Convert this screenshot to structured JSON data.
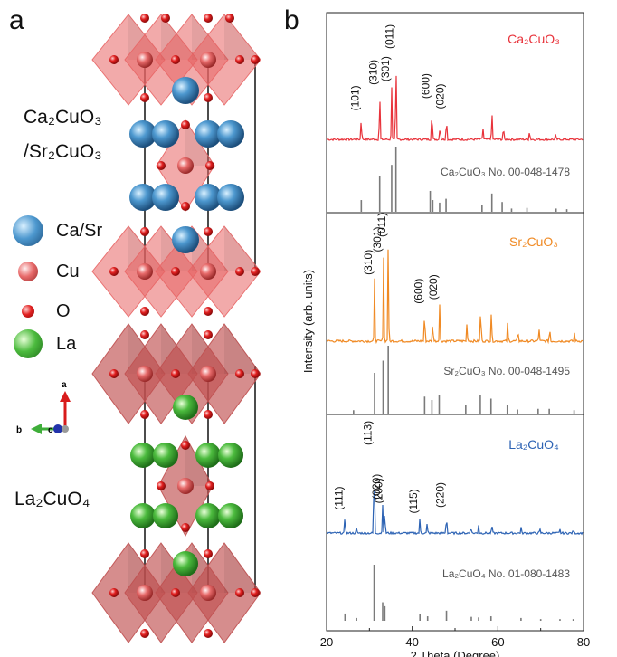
{
  "panels": {
    "a": "a",
    "b": "b"
  },
  "structure": {
    "top_formula_1": "Ca₂CuO₃",
    "top_formula_2": "/Sr₂CuO₃",
    "bottom_formula": "La₂CuO₄",
    "legend": [
      {
        "label": "Ca/Sr",
        "color": "#3b7fb4",
        "icon": "blue-sphere"
      },
      {
        "label": "Cu",
        "color": "#e05f5f",
        "icon": "pink-sphere"
      },
      {
        "label": "O",
        "color": "#d81b1b",
        "icon": "red-sphere"
      },
      {
        "label": "La",
        "color": "#3fae3a",
        "icon": "green-sphere"
      }
    ],
    "axes": {
      "a": "a",
      "b": "b",
      "c": "c"
    }
  },
  "chart_data": {
    "type": "line",
    "xlabel": "2 Theta (Degree)",
    "ylabel": "Intensity (arb. units)",
    "xlim": [
      20,
      80
    ],
    "xticks": [
      20,
      40,
      60,
      80
    ],
    "series": [
      {
        "name": "Ca₂CuO₃",
        "color": "#e8333b",
        "kind": "measured",
        "peaks": [
          {
            "x": 28.1,
            "h": 0.28,
            "label": "(101)"
          },
          {
            "x": 32.4,
            "h": 0.58,
            "label": "(310)"
          },
          {
            "x": 35.2,
            "h": 0.62,
            "label": "(301)"
          },
          {
            "x": 36.2,
            "h": 1.0,
            "label": "(011)"
          },
          {
            "x": 44.6,
            "h": 0.42,
            "label": "(600)"
          },
          {
            "x": 46.5,
            "h": 0.2,
            "label": ""
          },
          {
            "x": 48.0,
            "h": 0.3,
            "label": "(020)"
          },
          {
            "x": 56.5,
            "h": 0.15,
            "label": ""
          },
          {
            "x": 58.6,
            "h": 0.35,
            "label": ""
          },
          {
            "x": 61.3,
            "h": 0.17,
            "label": ""
          },
          {
            "x": 67.4,
            "h": 0.12,
            "label": ""
          },
          {
            "x": 73.5,
            "h": 0.06,
            "label": ""
          }
        ]
      },
      {
        "name": "Ca₂CuO₃ No. 00-048-1478",
        "color": "#7a7a7a",
        "kind": "reference",
        "peaks": [
          {
            "x": 28.1,
            "h": 0.18
          },
          {
            "x": 32.4,
            "h": 0.55
          },
          {
            "x": 35.2,
            "h": 0.72
          },
          {
            "x": 36.2,
            "h": 1.0
          },
          {
            "x": 44.2,
            "h": 0.32
          },
          {
            "x": 44.8,
            "h": 0.18
          },
          {
            "x": 46.4,
            "h": 0.14
          },
          {
            "x": 47.9,
            "h": 0.2
          },
          {
            "x": 56.3,
            "h": 0.1
          },
          {
            "x": 58.6,
            "h": 0.28
          },
          {
            "x": 61.0,
            "h": 0.15
          },
          {
            "x": 63.2,
            "h": 0.05
          },
          {
            "x": 66.8,
            "h": 0.06
          },
          {
            "x": 73.6,
            "h": 0.05
          },
          {
            "x": 76.1,
            "h": 0.04
          }
        ]
      },
      {
        "name": "Sr₂CuO₃",
        "color": "#f08a24",
        "kind": "measured",
        "peaks": [
          {
            "x": 31.2,
            "h": 0.62,
            "label": "(310)"
          },
          {
            "x": 33.3,
            "h": 0.85,
            "label": "(301)"
          },
          {
            "x": 34.4,
            "h": 1.0,
            "label": "(011)"
          },
          {
            "x": 42.9,
            "h": 0.33,
            "label": "(600)"
          },
          {
            "x": 44.8,
            "h": 0.22,
            "label": ""
          },
          {
            "x": 46.4,
            "h": 0.37,
            "label": "(020)"
          },
          {
            "x": 52.8,
            "h": 0.2,
            "label": ""
          },
          {
            "x": 56.0,
            "h": 0.4,
            "label": ""
          },
          {
            "x": 58.5,
            "h": 0.32,
            "label": ""
          },
          {
            "x": 62.3,
            "h": 0.2,
            "label": ""
          },
          {
            "x": 64.7,
            "h": 0.12,
            "label": ""
          },
          {
            "x": 69.6,
            "h": 0.14,
            "label": ""
          },
          {
            "x": 72.1,
            "h": 0.15,
            "label": ""
          },
          {
            "x": 77.9,
            "h": 0.08,
            "label": ""
          }
        ]
      },
      {
        "name": "Sr₂CuO₃ No. 00-048-1495",
        "color": "#7a7a7a",
        "kind": "reference",
        "peaks": [
          {
            "x": 26.3,
            "h": 0.05
          },
          {
            "x": 31.2,
            "h": 0.6
          },
          {
            "x": 33.2,
            "h": 0.78
          },
          {
            "x": 34.4,
            "h": 1.0
          },
          {
            "x": 42.9,
            "h": 0.25
          },
          {
            "x": 44.6,
            "h": 0.2
          },
          {
            "x": 46.3,
            "h": 0.28
          },
          {
            "x": 52.5,
            "h": 0.12
          },
          {
            "x": 55.9,
            "h": 0.28
          },
          {
            "x": 58.4,
            "h": 0.22
          },
          {
            "x": 62.2,
            "h": 0.12
          },
          {
            "x": 64.6,
            "h": 0.06
          },
          {
            "x": 69.4,
            "h": 0.07
          },
          {
            "x": 72.0,
            "h": 0.07
          },
          {
            "x": 77.8,
            "h": 0.05
          }
        ]
      },
      {
        "name": "La₂CuO₄",
        "color": "#2d63b4",
        "kind": "measured",
        "peaks": [
          {
            "x": 24.3,
            "h": 0.22,
            "label": "(111)"
          },
          {
            "x": 27.0,
            "h": 0.06,
            "label": ""
          },
          {
            "x": 31.1,
            "h": 1.0,
            "label": "(113)"
          },
          {
            "x": 33.1,
            "h": 0.35,
            "label": "(020)"
          },
          {
            "x": 33.6,
            "h": 0.3,
            "label": "(200)"
          },
          {
            "x": 41.8,
            "h": 0.18,
            "label": "(115)"
          },
          {
            "x": 43.5,
            "h": 0.12,
            "label": ""
          },
          {
            "x": 48.0,
            "h": 0.25,
            "label": "(220)"
          },
          {
            "x": 53.7,
            "h": 0.1,
            "label": ""
          },
          {
            "x": 55.5,
            "h": 0.1,
            "label": ""
          },
          {
            "x": 58.6,
            "h": 0.1,
            "label": ""
          },
          {
            "x": 65.4,
            "h": 0.07,
            "label": ""
          },
          {
            "x": 69.8,
            "h": 0.05,
            "label": ""
          },
          {
            "x": 74.5,
            "h": 0.04,
            "label": ""
          },
          {
            "x": 77.6,
            "h": 0.04,
            "label": ""
          }
        ]
      },
      {
        "name": "La₂CuO₄ No. 01-080-1483",
        "color": "#7a7a7a",
        "kind": "reference",
        "peaks": [
          {
            "x": 24.3,
            "h": 0.13
          },
          {
            "x": 27.0,
            "h": 0.05
          },
          {
            "x": 31.1,
            "h": 1.0
          },
          {
            "x": 33.1,
            "h": 0.33
          },
          {
            "x": 33.6,
            "h": 0.26
          },
          {
            "x": 41.8,
            "h": 0.12
          },
          {
            "x": 43.6,
            "h": 0.08
          },
          {
            "x": 48.0,
            "h": 0.18
          },
          {
            "x": 53.8,
            "h": 0.07
          },
          {
            "x": 55.5,
            "h": 0.06
          },
          {
            "x": 58.4,
            "h": 0.08
          },
          {
            "x": 65.4,
            "h": 0.05
          },
          {
            "x": 70.0,
            "h": 0.03
          },
          {
            "x": 74.5,
            "h": 0.03
          },
          {
            "x": 77.6,
            "h": 0.03
          }
        ]
      }
    ]
  }
}
